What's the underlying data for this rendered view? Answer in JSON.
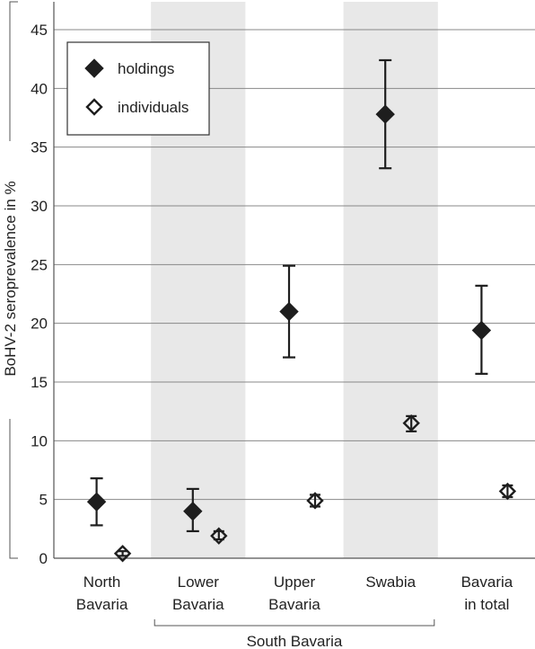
{
  "chart_data": {
    "type": "scatter",
    "ylabel": "BoHV-2 seroprevalence in %",
    "ylim": [
      0,
      45
    ],
    "yticks": [
      "0",
      "5",
      "10",
      "15",
      "20",
      "25",
      "30",
      "35",
      "40",
      "45"
    ],
    "categories": [
      {
        "label": [
          "North",
          "Bavaria"
        ],
        "shaded": false
      },
      {
        "label": [
          "Lower",
          "Bavaria"
        ],
        "shaded": true
      },
      {
        "label": [
          "Upper",
          "Bavaria"
        ],
        "shaded": false
      },
      {
        "label": [
          "Swabia"
        ],
        "shaded": true
      },
      {
        "label": [
          "Bavaria",
          "in total"
        ],
        "shaded": false
      }
    ],
    "group_label": "South Bavaria",
    "grid": true,
    "legend_position": "top-left",
    "series": [
      {
        "name": "holdings",
        "marker": "filled-diamond",
        "values": [
          4.8,
          4.0,
          21.0,
          37.8,
          19.4
        ],
        "lower": [
          2.8,
          2.3,
          17.1,
          33.2,
          15.7
        ],
        "upper": [
          6.8,
          5.9,
          24.9,
          42.4,
          23.2
        ]
      },
      {
        "name": "individuals",
        "marker": "open-diamond",
        "values": [
          0.4,
          1.9,
          4.9,
          11.5,
          5.7
        ],
        "lower": [
          0.2,
          1.6,
          4.4,
          10.8,
          5.2
        ],
        "upper": [
          0.6,
          2.3,
          5.4,
          12.1,
          6.2
        ]
      }
    ],
    "colors": {
      "marker": "#1e1e1e",
      "grid": "#888888",
      "shade": "#e8e8e8",
      "axis": "#555555"
    }
  }
}
